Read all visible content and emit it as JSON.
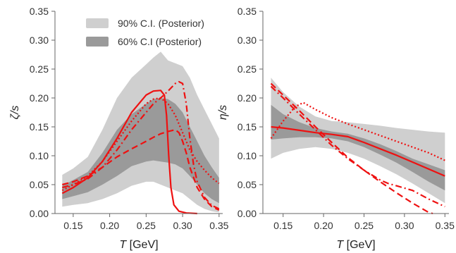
{
  "colors": {
    "ci90": "#cfcfcf",
    "ci60": "#9a9a9a",
    "curve": "#ee1111",
    "spine": "#666666"
  },
  "legend": {
    "ci90_label": "90% C.I. (Posterior)",
    "ci60_label": "60% C.I (Posterior)"
  },
  "chart_data": [
    {
      "type": "area",
      "xlabel_italic": "T",
      "xlabel_rest": " [GeV]",
      "ylabel": "ζ/s",
      "xlim": [
        0.125,
        0.355
      ],
      "ylim": [
        0.0,
        0.35
      ],
      "xticks": [
        "0.15",
        "0.20",
        "0.25",
        "0.30",
        "0.35"
      ],
      "xtick_values": [
        0.15,
        0.2,
        0.25,
        0.3,
        0.35
      ],
      "yticks": [
        "0.00",
        "0.05",
        "0.10",
        "0.15",
        "0.20",
        "0.25",
        "0.30",
        "0.35"
      ],
      "ytick_values": [
        0.0,
        0.05,
        0.1,
        0.15,
        0.2,
        0.25,
        0.3,
        0.35
      ],
      "bands": [
        {
          "name": "90% C.I. (Posterior)",
          "x": [
            0.135,
            0.15,
            0.17,
            0.19,
            0.21,
            0.23,
            0.25,
            0.26,
            0.27,
            0.28,
            0.29,
            0.3,
            0.31,
            0.32,
            0.33,
            0.34,
            0.35
          ],
          "lower": [
            0.012,
            0.015,
            0.018,
            0.025,
            0.035,
            0.048,
            0.055,
            0.055,
            0.05,
            0.045,
            0.04,
            0.035,
            0.025,
            0.015,
            0.008,
            0.004,
            0.002
          ],
          "upper": [
            0.067,
            0.078,
            0.098,
            0.145,
            0.2,
            0.235,
            0.258,
            0.27,
            0.28,
            0.265,
            0.26,
            0.255,
            0.235,
            0.205,
            0.18,
            0.155,
            0.13
          ]
        },
        {
          "name": "60% C.I (Posterior)",
          "x": [
            0.135,
            0.15,
            0.17,
            0.19,
            0.21,
            0.23,
            0.25,
            0.26,
            0.27,
            0.28,
            0.29,
            0.3,
            0.31,
            0.32,
            0.33,
            0.34,
            0.35
          ],
          "lower": [
            0.025,
            0.03,
            0.037,
            0.05,
            0.065,
            0.082,
            0.09,
            0.092,
            0.09,
            0.088,
            0.085,
            0.078,
            0.065,
            0.05,
            0.035,
            0.025,
            0.018
          ],
          "upper": [
            0.048,
            0.058,
            0.072,
            0.105,
            0.145,
            0.172,
            0.19,
            0.198,
            0.2,
            0.198,
            0.19,
            0.175,
            0.15,
            0.125,
            0.1,
            0.08,
            0.062
          ]
        }
      ],
      "curves": [
        {
          "style": "solid",
          "x": [
            0.135,
            0.15,
            0.17,
            0.19,
            0.21,
            0.23,
            0.25,
            0.26,
            0.27,
            0.275,
            0.278,
            0.281,
            0.284,
            0.288,
            0.295,
            0.305,
            0.32
          ],
          "y": [
            0.035,
            0.045,
            0.062,
            0.09,
            0.13,
            0.175,
            0.205,
            0.212,
            0.213,
            0.205,
            0.17,
            0.1,
            0.045,
            0.015,
            0.004,
            0.001,
            0.0
          ]
        },
        {
          "style": "dashdot",
          "x": [
            0.135,
            0.15,
            0.17,
            0.19,
            0.21,
            0.23,
            0.25,
            0.26,
            0.27,
            0.28,
            0.29,
            0.295,
            0.3,
            0.305,
            0.31,
            0.315,
            0.32,
            0.33,
            0.34,
            0.35
          ],
          "y": [
            0.045,
            0.05,
            0.06,
            0.08,
            0.11,
            0.145,
            0.175,
            0.19,
            0.2,
            0.212,
            0.225,
            0.228,
            0.225,
            0.19,
            0.13,
            0.085,
            0.055,
            0.028,
            0.014,
            0.008
          ]
        },
        {
          "style": "dashed",
          "x": [
            0.135,
            0.15,
            0.17,
            0.19,
            0.21,
            0.23,
            0.25,
            0.26,
            0.27,
            0.28,
            0.29,
            0.295,
            0.3,
            0.305,
            0.31,
            0.32,
            0.33,
            0.34,
            0.35
          ],
          "y": [
            0.05,
            0.055,
            0.065,
            0.08,
            0.098,
            0.112,
            0.125,
            0.132,
            0.138,
            0.142,
            0.145,
            0.14,
            0.125,
            0.105,
            0.08,
            0.045,
            0.025,
            0.012,
            0.006
          ]
        },
        {
          "style": "dotted",
          "x": [
            0.135,
            0.15,
            0.17,
            0.19,
            0.21,
            0.23,
            0.25,
            0.26,
            0.27,
            0.28,
            0.29,
            0.3,
            0.31,
            0.32,
            0.33,
            0.34,
            0.35
          ],
          "y": [
            0.04,
            0.05,
            0.065,
            0.09,
            0.125,
            0.16,
            0.19,
            0.198,
            0.2,
            0.19,
            0.17,
            0.14,
            0.11,
            0.09,
            0.075,
            0.062,
            0.052
          ]
        }
      ]
    },
    {
      "type": "area",
      "xlabel_italic": "T",
      "xlabel_rest": " [GeV]",
      "ylabel": "η/s",
      "xlim": [
        0.125,
        0.355
      ],
      "ylim": [
        0.0,
        0.35
      ],
      "xticks": [
        "0.15",
        "0.20",
        "0.25",
        "0.30",
        "0.35"
      ],
      "xtick_values": [
        0.15,
        0.2,
        0.25,
        0.3,
        0.35
      ],
      "yticks": [
        "0.00",
        "0.05",
        "0.10",
        "0.15",
        "0.20",
        "0.25",
        "0.30",
        "0.35"
      ],
      "ytick_values": [
        0.0,
        0.05,
        0.1,
        0.15,
        0.2,
        0.25,
        0.3,
        0.35
      ],
      "bands": [
        {
          "name": "90% C.I. (Posterior)",
          "x": [
            0.135,
            0.15,
            0.17,
            0.19,
            0.21,
            0.23,
            0.25,
            0.27,
            0.29,
            0.31,
            0.33,
            0.35
          ],
          "lower": [
            0.095,
            0.105,
            0.112,
            0.115,
            0.112,
            0.105,
            0.095,
            0.082,
            0.068,
            0.052,
            0.035,
            0.018
          ],
          "upper": [
            0.235,
            0.21,
            0.185,
            0.168,
            0.16,
            0.158,
            0.155,
            0.152,
            0.148,
            0.145,
            0.142,
            0.14
          ]
        },
        {
          "name": "60% C.I (Posterior)",
          "x": [
            0.135,
            0.15,
            0.17,
            0.19,
            0.21,
            0.23,
            0.25,
            0.27,
            0.29,
            0.31,
            0.33,
            0.35
          ],
          "lower": [
            0.128,
            0.13,
            0.132,
            0.132,
            0.13,
            0.125,
            0.115,
            0.102,
            0.088,
            0.072,
            0.055,
            0.04
          ],
          "upper": [
            0.188,
            0.172,
            0.158,
            0.148,
            0.142,
            0.138,
            0.13,
            0.12,
            0.108,
            0.095,
            0.085,
            0.075
          ]
        }
      ],
      "curves": [
        {
          "style": "solid",
          "x": [
            0.135,
            0.15,
            0.17,
            0.19,
            0.21,
            0.23,
            0.25,
            0.27,
            0.29,
            0.31,
            0.33,
            0.35
          ],
          "y": [
            0.15,
            0.148,
            0.144,
            0.14,
            0.137,
            0.133,
            0.123,
            0.112,
            0.101,
            0.089,
            0.077,
            0.065
          ]
        },
        {
          "style": "dashdot",
          "x": [
            0.135,
            0.15,
            0.17,
            0.19,
            0.21,
            0.23,
            0.25,
            0.27,
            0.28,
            0.29,
            0.31,
            0.33,
            0.35
          ],
          "y": [
            0.22,
            0.2,
            0.172,
            0.145,
            0.118,
            0.095,
            0.075,
            0.058,
            0.052,
            0.048,
            0.04,
            0.025,
            0.012
          ]
        },
        {
          "style": "dashed",
          "x": [
            0.135,
            0.15,
            0.17,
            0.19,
            0.21,
            0.23,
            0.25,
            0.27,
            0.29,
            0.31,
            0.33,
            0.335
          ],
          "y": [
            0.225,
            0.205,
            0.178,
            0.15,
            0.123,
            0.097,
            0.075,
            0.055,
            0.036,
            0.018,
            0.002,
            0.0
          ]
        },
        {
          "style": "dotted",
          "x": [
            0.135,
            0.15,
            0.165,
            0.175,
            0.19,
            0.21,
            0.23,
            0.25,
            0.27,
            0.29,
            0.31,
            0.33,
            0.35
          ],
          "y": [
            0.13,
            0.16,
            0.185,
            0.192,
            0.18,
            0.166,
            0.155,
            0.145,
            0.135,
            0.125,
            0.115,
            0.105,
            0.092
          ]
        }
      ]
    }
  ]
}
